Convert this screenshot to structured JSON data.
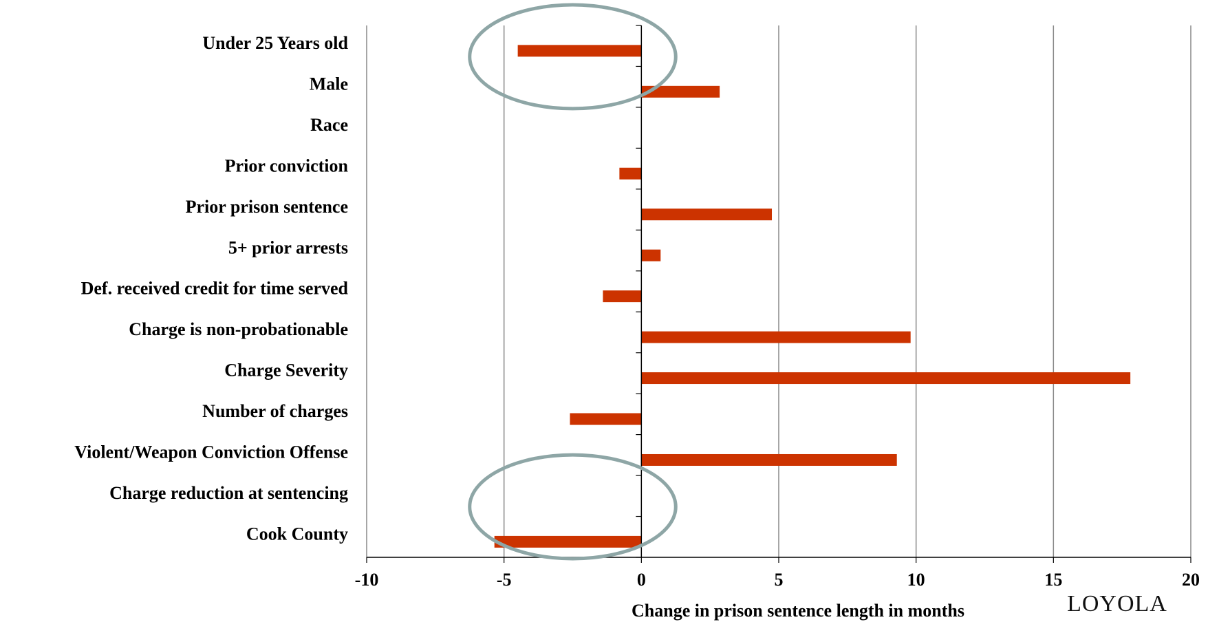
{
  "chart_data": {
    "type": "bar",
    "orientation": "horizontal",
    "categories": [
      "Under 25 Years old",
      "Male",
      "Race",
      "Prior conviction",
      "Prior prison sentence",
      "5+ prior arrests",
      "Def. received credit for time served",
      "Charge is non-probationable",
      "Charge Severity",
      "Number of charges",
      "Violent/Weapon Conviction Offense",
      "Charge reduction at sentencing",
      "Cook County"
    ],
    "values": [
      -4.5,
      2.85,
      0,
      -0.8,
      4.75,
      0.7,
      -1.4,
      9.8,
      17.8,
      -2.6,
      9.3,
      0,
      -5.35
    ],
    "xlim": [
      -10,
      20
    ],
    "xticks": [
      -10,
      -5,
      0,
      5,
      10,
      15,
      20
    ],
    "xlabel": "Change in prison sentence length in months",
    "title": "",
    "grid": true,
    "bar_color": "#cc3300",
    "grid_color": "#888888",
    "highlight_color": "#8ea6a6",
    "highlights": [
      {
        "categories": [
          "Under 25 Years old",
          "Male"
        ]
      },
      {
        "categories": [
          "Charge reduction at sentencing",
          "Cook County"
        ]
      }
    ]
  },
  "logo": {
    "text": "LOYOLA"
  }
}
